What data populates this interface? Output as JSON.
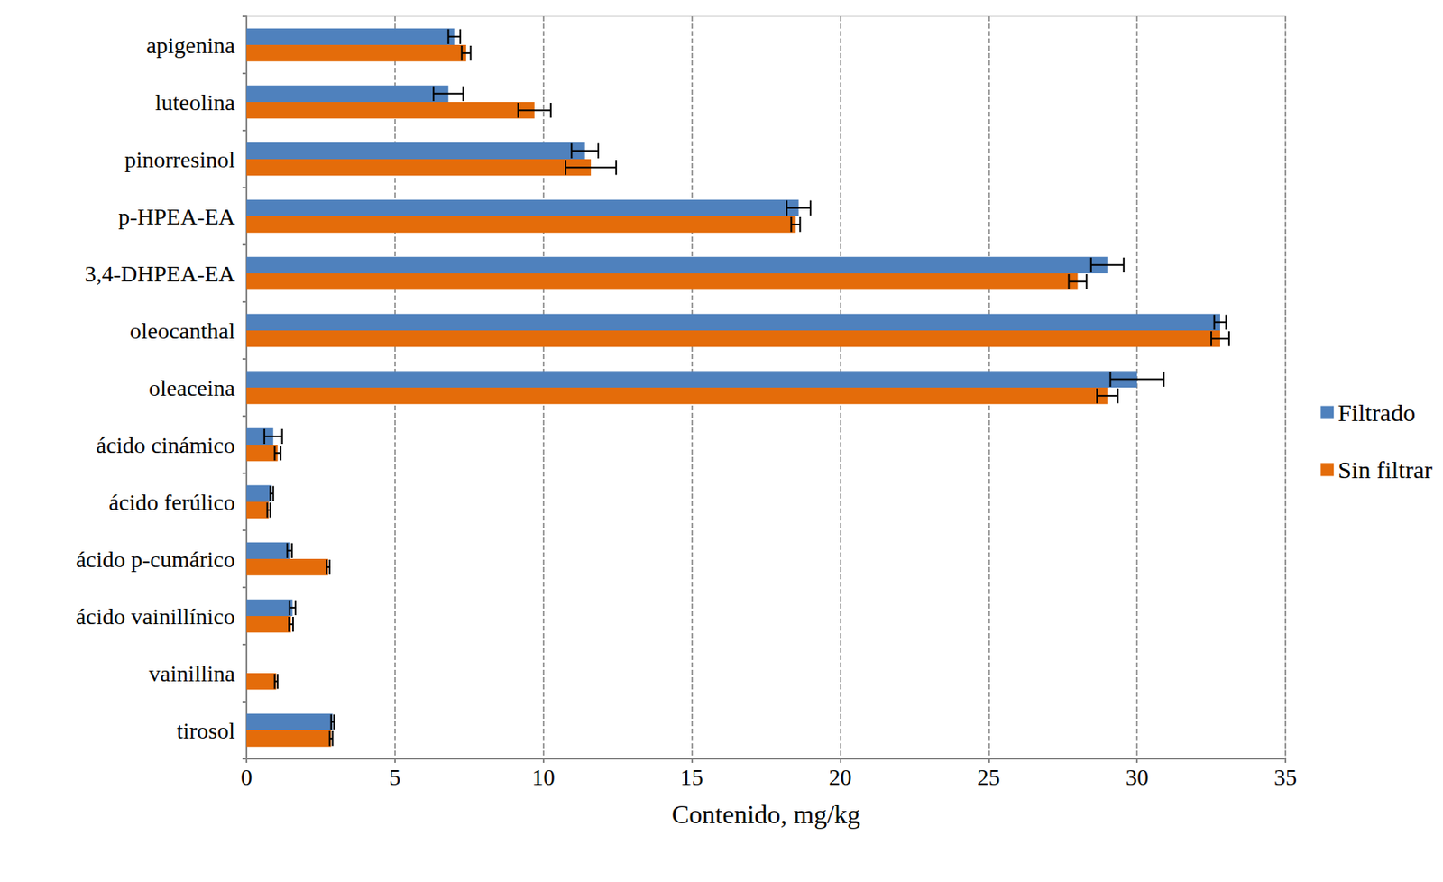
{
  "chart_data": {
    "type": "bar",
    "orientation": "horizontal",
    "categories": [
      "apigenina",
      "luteolina",
      "pinorresinol",
      "p-HPEA-EA",
      "3,4-DHPEA-EA",
      "oleocanthal",
      "oleaceina",
      "ácido cinámico",
      "ácido ferúlico",
      "ácido p-cumárico",
      "ácido vainillínico",
      "vainillina",
      "tirosol"
    ],
    "series": [
      {
        "name": "Filtrado",
        "color": "#4f81bd",
        "values": [
          7.0,
          6.8,
          11.4,
          18.6,
          29.0,
          32.8,
          30.0,
          0.9,
          0.85,
          1.45,
          1.55,
          null,
          2.9
        ],
        "errors": [
          0.2,
          0.5,
          0.45,
          0.4,
          0.55,
          0.2,
          0.9,
          0.3,
          0.05,
          0.08,
          0.1,
          null,
          0.05
        ]
      },
      {
        "name": "Sin filtrar",
        "color": "#e46c0a",
        "values": [
          7.4,
          9.7,
          11.6,
          18.5,
          28.0,
          32.8,
          29.0,
          1.05,
          0.75,
          2.75,
          1.5,
          1.0,
          2.85
        ],
        "errors": [
          0.15,
          0.55,
          0.85,
          0.15,
          0.3,
          0.3,
          0.35,
          0.1,
          0.05,
          0.05,
          0.07,
          0.05,
          0.05
        ]
      }
    ],
    "x_label": "Contenido, mg/kg",
    "xlim": [
      0,
      35
    ],
    "xticks": [
      0,
      5,
      10,
      15,
      20,
      25,
      30,
      35
    ],
    "grid": true,
    "legend": "right"
  }
}
